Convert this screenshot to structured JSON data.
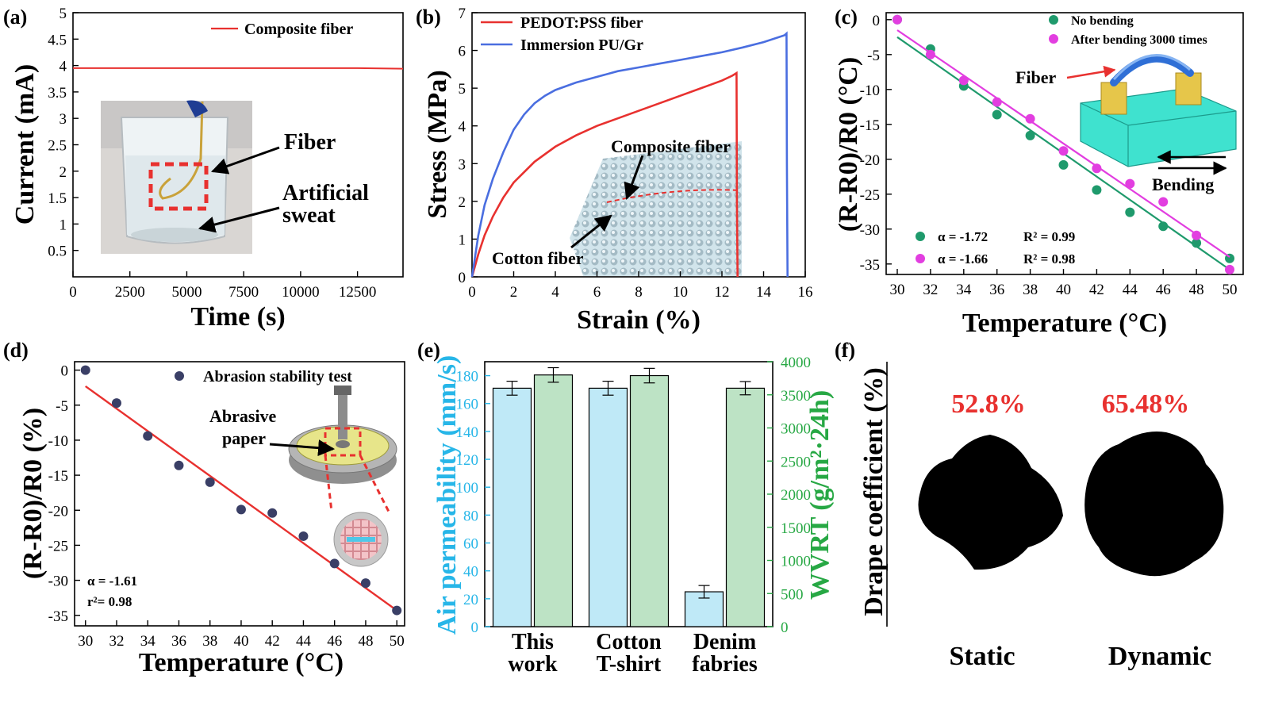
{
  "chart_data": [
    {
      "panel": "(a)",
      "type": "line",
      "xlabel": "Time (s)",
      "ylabel": "Current (mA)",
      "xlim": [
        0,
        14500
      ],
      "ylim": [
        0,
        5.0
      ],
      "xticks": [
        0,
        2500,
        5000,
        7500,
        10000,
        12500
      ],
      "yticks": [
        0.5,
        1.0,
        1.5,
        2.0,
        2.5,
        3.0,
        3.5,
        4.0,
        4.5,
        5.0
      ],
      "legend_position": "top-right",
      "series": [
        {
          "name": "Composite fiber",
          "color": "#e8312f",
          "x": [
            0,
            2500,
            5000,
            7500,
            10000,
            12500,
            14500
          ],
          "y": [
            3.95,
            3.95,
            3.95,
            3.95,
            3.95,
            3.95,
            3.94
          ]
        }
      ],
      "annotations": [
        "Fiber",
        "Artificial",
        "sweat"
      ]
    },
    {
      "panel": "(b)",
      "type": "line",
      "xlabel": "Strain (%)",
      "ylabel": "Stress (MPa)",
      "xlim": [
        0,
        16
      ],
      "ylim": [
        0,
        7
      ],
      "xticks": [
        0,
        2,
        4,
        6,
        8,
        10,
        12,
        14,
        16
      ],
      "yticks": [
        0,
        1,
        2,
        3,
        4,
        5,
        6,
        7
      ],
      "legend_position": "top-left",
      "series": [
        {
          "name": "PEDOT:PSS fiber",
          "color": "#e8312f",
          "x": [
            0,
            0.3,
            0.6,
            1.0,
            1.5,
            2.0,
            3.0,
            4.0,
            5.0,
            6.0,
            7.0,
            8.0,
            9.0,
            10.0,
            11.0,
            12.0,
            12.5,
            12.7,
            12.72,
            12.75
          ],
          "y": [
            0,
            0.6,
            1.1,
            1.6,
            2.1,
            2.5,
            3.05,
            3.45,
            3.75,
            4.0,
            4.2,
            4.4,
            4.6,
            4.8,
            5.0,
            5.2,
            5.33,
            5.4,
            2.0,
            0
          ]
        },
        {
          "name": "Immersion PU/Gr",
          "color": "#4a6ee0",
          "x": [
            0,
            0.3,
            0.6,
            1.0,
            1.5,
            2.0,
            2.5,
            3.0,
            3.5,
            4.0,
            5.0,
            6.0,
            7.0,
            8.0,
            9.0,
            10.0,
            11.0,
            12.0,
            13.0,
            14.0,
            15.0,
            15.1,
            15.12,
            15.15
          ],
          "y": [
            0,
            1.1,
            1.9,
            2.6,
            3.3,
            3.9,
            4.3,
            4.6,
            4.8,
            4.95,
            5.15,
            5.3,
            5.45,
            5.55,
            5.65,
            5.75,
            5.85,
            5.95,
            6.08,
            6.22,
            6.4,
            6.45,
            3.0,
            0
          ]
        }
      ],
      "annotations": [
        "Composite fiber",
        "Cotton fiber"
      ]
    },
    {
      "panel": "(c)",
      "type": "scatter",
      "xlabel": "Temperature (°C)",
      "ylabel": "(R-R0)/R0 (°C)",
      "xlim": [
        30,
        50
      ],
      "ylim": [
        -36.5,
        1
      ],
      "xticks": [
        30,
        32,
        34,
        36,
        38,
        40,
        42,
        44,
        46,
        48,
        50
      ],
      "yticks": [
        0,
        -5,
        -10,
        -15,
        -20,
        -25,
        -30,
        -35
      ],
      "legend_position": "top-right",
      "series": [
        {
          "name": "No bending",
          "color": "#1f9a6c",
          "x": [
            30,
            32,
            34,
            36,
            38,
            40,
            42,
            44,
            46,
            48,
            50
          ],
          "y": [
            0,
            -4.2,
            -9.5,
            -13.6,
            -16.6,
            -20.8,
            -24.4,
            -27.6,
            -29.6,
            -32.0,
            -34.2
          ],
          "fit": {
            "alpha_text": "α = -1.72",
            "r2_text": "R² = 0.99",
            "y_start": -2.5,
            "y_end": -35.8
          }
        },
        {
          "name": "After bending 3000 times",
          "color": "#e23ee0",
          "x": [
            30,
            32,
            34,
            36,
            38,
            40,
            42,
            44,
            46,
            48,
            50
          ],
          "y": [
            0,
            -5.0,
            -8.7,
            -11.8,
            -14.2,
            -18.8,
            -21.3,
            -23.5,
            -26.1,
            -30.9,
            -35.8
          ],
          "fit": {
            "alpha_text": "α = -1.66",
            "r2_text": "R² = 0.98",
            "y_start": -1.5,
            "y_end": -34.0
          }
        }
      ],
      "annotations": [
        "Fiber",
        "Bending"
      ]
    },
    {
      "panel": "(d)",
      "type": "scatter",
      "xlabel": "Temperature (°C)",
      "ylabel": "(R-R0)/R0 (%)",
      "xlim": [
        29.3,
        50.5
      ],
      "ylim": [
        -36.5,
        1.2
      ],
      "xticks": [
        30,
        32,
        34,
        36,
        38,
        40,
        42,
        44,
        46,
        48,
        50
      ],
      "yticks": [
        0,
        -5,
        -10,
        -15,
        -20,
        -25,
        -30,
        -35
      ],
      "legend_position": "top-right",
      "series": [
        {
          "name": "Abrasion stability test",
          "color": "#3a3f66",
          "x": [
            30,
            32,
            34,
            36,
            38,
            40,
            42,
            44,
            46,
            48,
            50
          ],
          "y": [
            0,
            -4.7,
            -9.4,
            -13.6,
            -16.0,
            -19.9,
            -20.4,
            -23.7,
            -27.6,
            -30.4,
            -34.3
          ],
          "fit": {
            "y_start": -2.3,
            "y_end": -34.3
          }
        }
      ],
      "fit_text": {
        "alpha": "α = -1.61",
        "r2": "r²= 0.98"
      },
      "annotations": [
        "Abrasive",
        "paper"
      ]
    },
    {
      "panel": "(e)",
      "type": "bar",
      "categories": [
        [
          "This",
          "work"
        ],
        [
          "Cotton",
          "T-shirt"
        ],
        [
          "Denim",
          "fabries"
        ]
      ],
      "ylabel": "Air permeability (mm/s)",
      "ylabel2": "WVRT (g/m²·24h)",
      "ylim": [
        0,
        190
      ],
      "ylim2": [
        0,
        4000
      ],
      "yticks": [
        0,
        20,
        40,
        60,
        80,
        100,
        120,
        140,
        160,
        180
      ],
      "yticks2": [
        0,
        500,
        1000,
        1500,
        2000,
        2500,
        3000,
        3500,
        4000
      ],
      "series": [
        {
          "name": "Air permeability",
          "axis": "left",
          "color": "#bfe9f7",
          "values": [
            171,
            171,
            25
          ],
          "errors": [
            5,
            5,
            4.5
          ]
        },
        {
          "name": "WVRT",
          "axis": "right",
          "color": "#bde3c5",
          "values": [
            3800,
            3790,
            3600
          ],
          "errors": [
            110,
            110,
            100
          ]
        }
      ],
      "axis_colors": {
        "left": "#27b6e8",
        "right": "#27a844"
      }
    },
    {
      "panel": "(f)",
      "type": "table",
      "ylabel": "Drape coefficient (%)",
      "items": [
        {
          "label": "Static",
          "value_text": "52.8%"
        },
        {
          "label": "Dynamic",
          "value_text": "65.48%"
        }
      ],
      "value_color": "#e8312f"
    }
  ]
}
